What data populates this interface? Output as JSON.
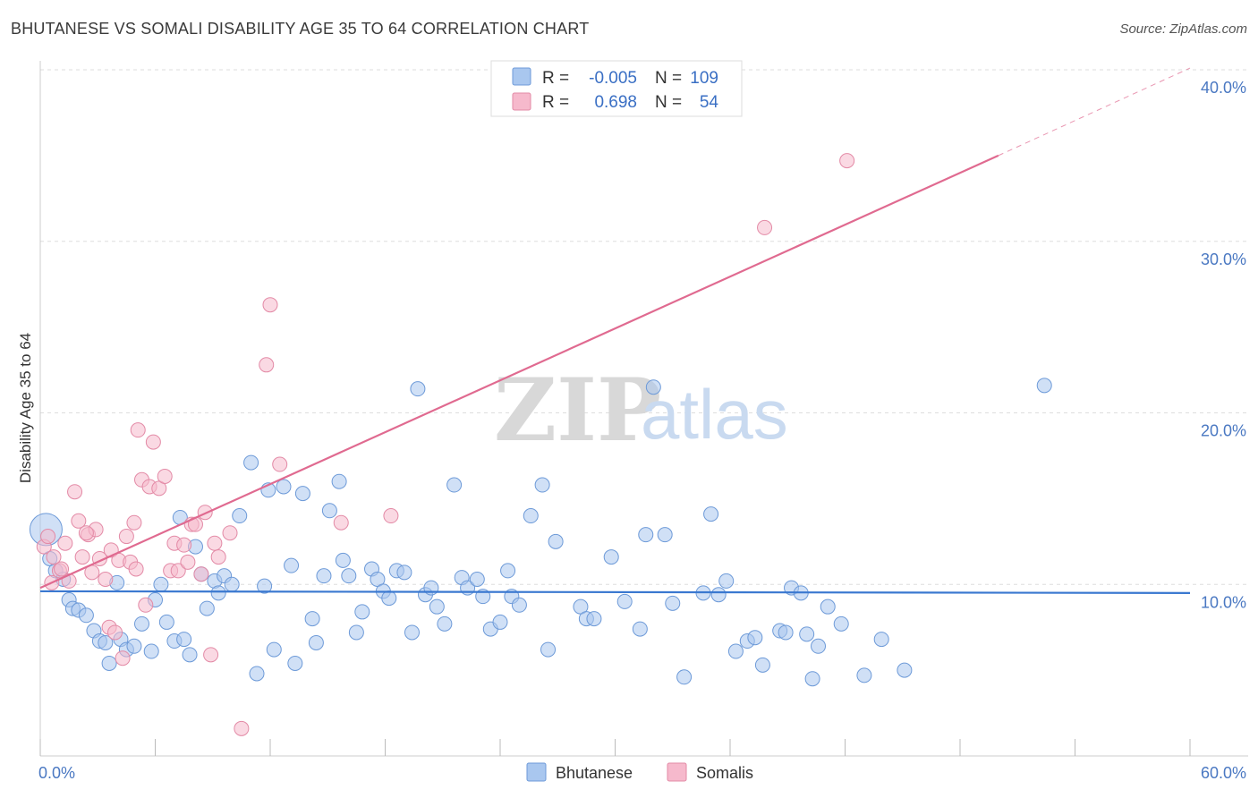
{
  "title": "BHUTANESE VS SOMALI DISABILITY AGE 35 TO 64 CORRELATION CHART",
  "source": "Source: ZipAtlas.com",
  "watermark": {
    "zip": "ZIP",
    "atlas": "atlas"
  },
  "legend": {
    "rows": [
      {
        "r_label": "R =",
        "r_value": "-0.005",
        "n_label": "N =",
        "n_value": "109",
        "color": "#a9c7ef",
        "stroke": "#6d9ad8"
      },
      {
        "r_label": "R =",
        "r_value": "0.698",
        "n_label": "N =",
        "n_value": "54",
        "color": "#f6b9cc",
        "stroke": "#e38aa6"
      }
    ]
  },
  "bottom_legend": [
    {
      "label": "Bhutanese",
      "color": "#a9c7ef",
      "stroke": "#6d9ad8"
    },
    {
      "label": "Somalis",
      "color": "#f6b9cc",
      "stroke": "#e38aa6"
    }
  ],
  "chart_data": {
    "type": "scatter",
    "title": "BHUTANESE VS SOMALI DISABILITY AGE 35 TO 64 CORRELATION CHART",
    "xlabel": "",
    "ylabel": "Disability Age 35 to 64",
    "xlim": [
      0,
      60
    ],
    "ylim": [
      0,
      40
    ],
    "x_tick_labels": [
      "0.0%",
      "60.0%"
    ],
    "y_ticks": [
      10,
      20,
      30,
      40
    ],
    "y_tick_labels": [
      "10.0%",
      "20.0%",
      "30.0%",
      "40.0%"
    ],
    "grid": true,
    "series": [
      {
        "name": "Bhutanese",
        "color": "#a9c7ef",
        "stroke": "#6d9ad8",
        "trend": {
          "x0": 0,
          "y0": 9.6,
          "x1": 60,
          "y1": 9.5,
          "color": "#3a78d0"
        },
        "points": [
          [
            0.3,
            13.2
          ],
          [
            0.5,
            11.5
          ],
          [
            0.8,
            10.8
          ],
          [
            1.2,
            10.3
          ],
          [
            1.5,
            9.1
          ],
          [
            1.7,
            8.6
          ],
          [
            2.0,
            8.5
          ],
          [
            2.4,
            8.2
          ],
          [
            2.8,
            7.3
          ],
          [
            3.1,
            6.7
          ],
          [
            3.4,
            6.6
          ],
          [
            3.6,
            5.4
          ],
          [
            4.0,
            10.1
          ],
          [
            4.2,
            6.8
          ],
          [
            4.5,
            6.2
          ],
          [
            4.9,
            6.4
          ],
          [
            5.3,
            7.7
          ],
          [
            5.8,
            6.1
          ],
          [
            6.0,
            9.1
          ],
          [
            6.3,
            10.0
          ],
          [
            6.6,
            7.8
          ],
          [
            7.0,
            6.7
          ],
          [
            7.3,
            13.9
          ],
          [
            7.5,
            6.8
          ],
          [
            7.8,
            5.9
          ],
          [
            8.1,
            12.2
          ],
          [
            8.4,
            10.6
          ],
          [
            8.7,
            8.6
          ],
          [
            9.1,
            10.2
          ],
          [
            9.3,
            9.5
          ],
          [
            9.6,
            10.5
          ],
          [
            10.0,
            10.0
          ],
          [
            10.4,
            14.0
          ],
          [
            11.0,
            17.1
          ],
          [
            11.3,
            4.8
          ],
          [
            11.7,
            9.9
          ],
          [
            11.9,
            15.5
          ],
          [
            12.2,
            6.2
          ],
          [
            12.7,
            15.7
          ],
          [
            13.1,
            11.1
          ],
          [
            13.3,
            5.4
          ],
          [
            13.7,
            15.3
          ],
          [
            14.2,
            8.0
          ],
          [
            14.4,
            6.6
          ],
          [
            14.8,
            10.5
          ],
          [
            15.1,
            14.3
          ],
          [
            15.6,
            16.0
          ],
          [
            15.8,
            11.4
          ],
          [
            16.1,
            10.5
          ],
          [
            16.5,
            7.2
          ],
          [
            16.8,
            8.4
          ],
          [
            17.3,
            10.9
          ],
          [
            17.6,
            10.3
          ],
          [
            17.9,
            9.6
          ],
          [
            18.2,
            9.2
          ],
          [
            18.6,
            10.8
          ],
          [
            19.0,
            10.7
          ],
          [
            19.4,
            7.2
          ],
          [
            19.7,
            21.4
          ],
          [
            20.1,
            9.4
          ],
          [
            20.4,
            9.8
          ],
          [
            20.7,
            8.7
          ],
          [
            21.1,
            7.7
          ],
          [
            21.6,
            15.8
          ],
          [
            22.0,
            10.4
          ],
          [
            22.3,
            9.8
          ],
          [
            22.8,
            10.3
          ],
          [
            23.1,
            9.3
          ],
          [
            23.5,
            7.4
          ],
          [
            24.0,
            7.8
          ],
          [
            24.4,
            10.8
          ],
          [
            24.6,
            9.3
          ],
          [
            25.0,
            8.8
          ],
          [
            25.6,
            14.0
          ],
          [
            26.2,
            15.8
          ],
          [
            26.5,
            6.2
          ],
          [
            26.9,
            12.5
          ],
          [
            28.2,
            8.7
          ],
          [
            28.5,
            8.0
          ],
          [
            28.9,
            8.0
          ],
          [
            29.8,
            11.6
          ],
          [
            30.5,
            9.0
          ],
          [
            31.3,
            7.4
          ],
          [
            31.6,
            12.9
          ],
          [
            32.0,
            21.5
          ],
          [
            32.6,
            12.9
          ],
          [
            33.0,
            8.9
          ],
          [
            33.6,
            4.6
          ],
          [
            34.6,
            9.5
          ],
          [
            35.0,
            14.1
          ],
          [
            35.4,
            9.4
          ],
          [
            35.8,
            10.2
          ],
          [
            36.3,
            6.1
          ],
          [
            36.9,
            6.7
          ],
          [
            37.3,
            6.9
          ],
          [
            37.7,
            5.3
          ],
          [
            38.6,
            7.3
          ],
          [
            38.9,
            7.2
          ],
          [
            39.2,
            9.8
          ],
          [
            39.7,
            9.5
          ],
          [
            40.0,
            7.1
          ],
          [
            40.3,
            4.5
          ],
          [
            40.6,
            6.4
          ],
          [
            41.1,
            8.7
          ],
          [
            41.8,
            7.7
          ],
          [
            43.0,
            4.7
          ],
          [
            43.9,
            6.8
          ],
          [
            45.1,
            5.0
          ],
          [
            52.4,
            21.6
          ]
        ]
      },
      {
        "name": "Somalis",
        "color": "#f6b9cc",
        "stroke": "#e38aa6",
        "trend": {
          "x0": 0,
          "y0": 9.8,
          "x1": 50,
          "y1": 35.0,
          "x2": 60,
          "y2": 40.1,
          "color": "#e06a90"
        },
        "points": [
          [
            0.2,
            12.2
          ],
          [
            0.4,
            12.8
          ],
          [
            0.7,
            11.6
          ],
          [
            1.0,
            10.8
          ],
          [
            1.3,
            12.4
          ],
          [
            1.5,
            10.2
          ],
          [
            1.8,
            15.4
          ],
          [
            2.0,
            13.7
          ],
          [
            2.2,
            11.6
          ],
          [
            2.5,
            12.9
          ],
          [
            2.7,
            10.7
          ],
          [
            2.9,
            13.2
          ],
          [
            3.1,
            11.5
          ],
          [
            3.4,
            10.3
          ],
          [
            3.6,
            7.5
          ],
          [
            3.7,
            12.0
          ],
          [
            3.9,
            7.2
          ],
          [
            4.1,
            11.4
          ],
          [
            4.3,
            5.7
          ],
          [
            4.5,
            12.8
          ],
          [
            4.7,
            11.3
          ],
          [
            4.9,
            13.6
          ],
          [
            5.1,
            19.0
          ],
          [
            5.3,
            16.1
          ],
          [
            5.5,
            8.8
          ],
          [
            5.7,
            15.7
          ],
          [
            5.9,
            18.3
          ],
          [
            6.2,
            15.6
          ],
          [
            6.5,
            16.3
          ],
          [
            6.8,
            10.8
          ],
          [
            7.0,
            12.4
          ],
          [
            7.2,
            10.8
          ],
          [
            7.5,
            12.3
          ],
          [
            7.7,
            11.3
          ],
          [
            7.9,
            13.5
          ],
          [
            8.1,
            13.5
          ],
          [
            8.4,
            10.6
          ],
          [
            8.6,
            14.2
          ],
          [
            8.9,
            5.9
          ],
          [
            9.1,
            12.4
          ],
          [
            9.3,
            11.6
          ],
          [
            9.9,
            13.0
          ],
          [
            10.5,
            1.6
          ],
          [
            11.8,
            22.8
          ],
          [
            12.0,
            26.3
          ],
          [
            12.5,
            17.0
          ],
          [
            15.7,
            13.6
          ],
          [
            18.3,
            14.0
          ],
          [
            37.8,
            30.8
          ],
          [
            42.1,
            34.7
          ],
          [
            0.6,
            10.1
          ],
          [
            1.1,
            10.9
          ],
          [
            2.4,
            13.0
          ],
          [
            5.0,
            10.9
          ]
        ]
      }
    ]
  }
}
